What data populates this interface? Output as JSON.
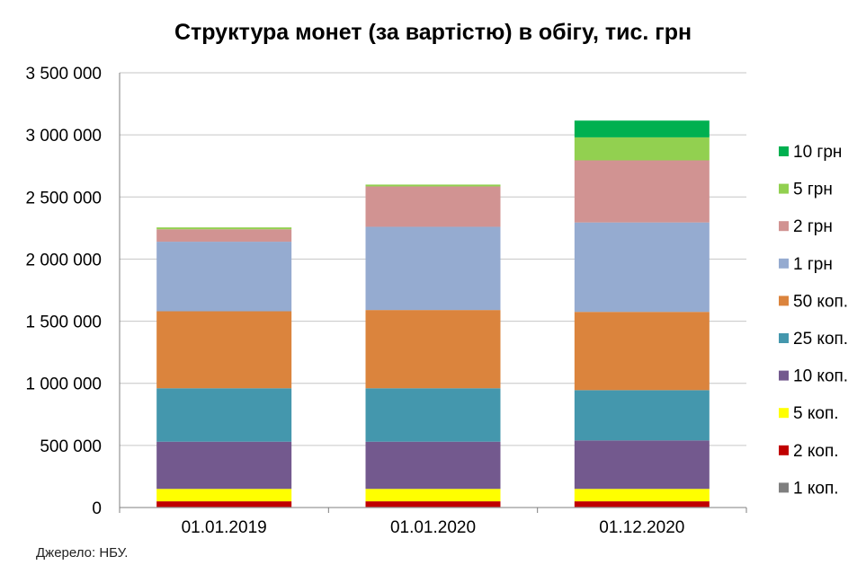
{
  "chart_data": {
    "type": "bar",
    "stacked": true,
    "title": "Структура монет (за вартістю) в обігу, тис. грн",
    "categories": [
      "01.01.2019",
      "01.01.2020",
      "01.12.2020"
    ],
    "ylim": [
      0,
      3500000
    ],
    "yticks": [
      "0",
      "500 000",
      "1 000 000",
      "1 500 000",
      "2 000 000",
      "2 500 000",
      "3 000 000",
      "3 500 000"
    ],
    "grid": true,
    "legend_position": "right",
    "series": [
      {
        "name": "1 коп.",
        "color": "#7f7f7f",
        "values": [
          5000,
          5000,
          5000
        ]
      },
      {
        "name": "2 коп.",
        "color": "#c00000",
        "values": [
          45000,
          45000,
          45000
        ]
      },
      {
        "name": "5 коп.",
        "color": "#ffff00",
        "values": [
          100000,
          100000,
          100000
        ]
      },
      {
        "name": "10 коп.",
        "color": "#73598e",
        "values": [
          380000,
          380000,
          390000
        ]
      },
      {
        "name": "25 коп.",
        "color": "#4497ad",
        "values": [
          430000,
          430000,
          405000
        ]
      },
      {
        "name": "50 коп.",
        "color": "#db843d",
        "values": [
          620000,
          630000,
          630000
        ]
      },
      {
        "name": "1 грн",
        "color": "#95abd0",
        "values": [
          560000,
          670000,
          720000
        ]
      },
      {
        "name": "2 грн",
        "color": "#d19392",
        "values": [
          100000,
          325000,
          500000
        ]
      },
      {
        "name": "5 грн",
        "color": "#92d050",
        "values": [
          15000,
          15000,
          185000
        ]
      },
      {
        "name": "10 грн",
        "color": "#00b050",
        "values": [
          0,
          0,
          135000
        ]
      }
    ]
  },
  "source_note": "Джерело: НБУ."
}
